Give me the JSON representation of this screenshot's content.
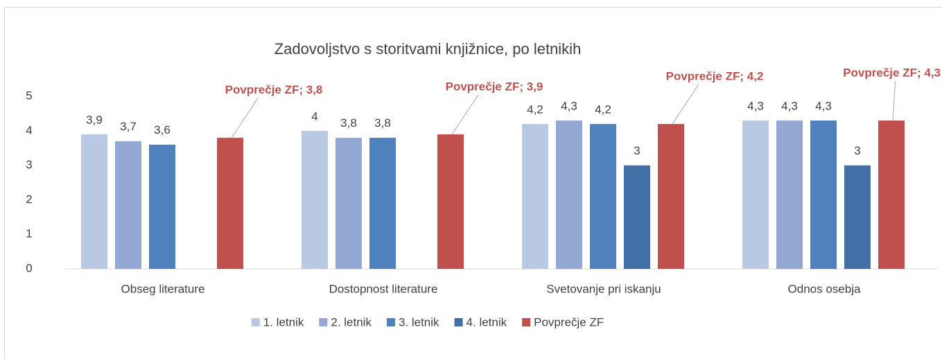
{
  "chart_data": {
    "type": "bar",
    "title": "Zadovoljstvo s storitvami knjižnice, po letnikih",
    "categories": [
      "Obseg literature",
      "Dostopnost literature",
      "Svetovanje pri iskanju",
      "Odnos osebja"
    ],
    "series": [
      {
        "name": "1. letnik",
        "color": "#b9c9e4",
        "values": [
          3.9,
          4,
          4.2,
          4.3
        ],
        "value_labels": [
          "3,9",
          "4",
          "4,2",
          "4,3"
        ]
      },
      {
        "name": "2. letnik",
        "color": "#93a9d3",
        "values": [
          3.7,
          3.8,
          4.3,
          4.3
        ],
        "value_labels": [
          "3,7",
          "3,8",
          "4,3",
          "4,3"
        ]
      },
      {
        "name": "3. letnik",
        "color": "#4f81bd",
        "values": [
          3.6,
          3.8,
          4.2,
          4.3
        ],
        "value_labels": [
          "3,6",
          "3,8",
          "4,2",
          "4,3"
        ]
      },
      {
        "name": "4. letnik",
        "color": "#4270a6",
        "values": [
          null,
          null,
          3,
          3
        ],
        "value_labels": [
          null,
          null,
          "3",
          "3"
        ]
      },
      {
        "name": "Povprečje ZF",
        "color": "#c0504d",
        "values": [
          3.8,
          3.9,
          4.2,
          4.3
        ],
        "value_labels": [
          "Povprečje ZF; 3,8",
          "Povprečje ZF; 3,9",
          "Povprečje ZF; 4,2",
          "Povprečje ZF; 4,3"
        ]
      }
    ],
    "ylim": [
      0,
      5
    ],
    "yticks": [
      0,
      1,
      2,
      3,
      4,
      5
    ],
    "grid": false,
    "legend": "bottom"
  }
}
